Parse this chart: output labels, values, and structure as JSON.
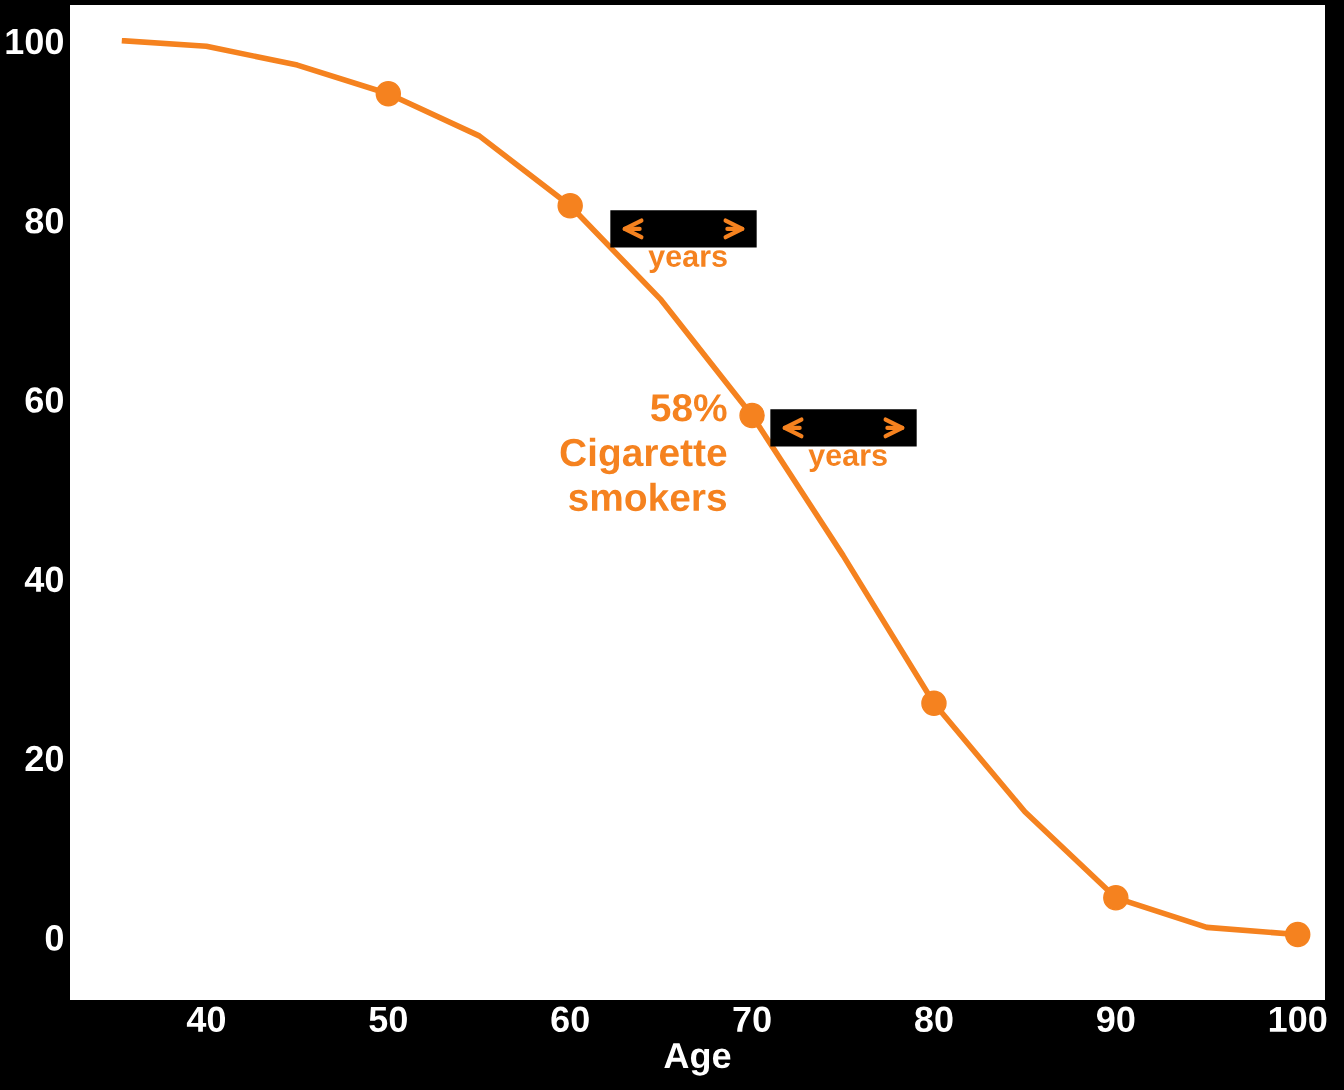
{
  "chart_data": {
    "type": "line",
    "xlabel": "Age",
    "series": [
      {
        "color": "#f5821f",
        "x": [
          35.5,
          40,
          45,
          50,
          55,
          60,
          65,
          70,
          75,
          80,
          85,
          90,
          95,
          100
        ],
        "values": [
          100,
          99.4,
          97.3,
          94.1,
          89.4,
          81.6,
          71.1,
          58.2,
          42.6,
          26.1,
          14,
          4.4,
          1.1,
          0.3
        ]
      },
      {
        "type": "scatter",
        "color": "#f5821f",
        "marker": "circle",
        "x": [
          50,
          60,
          70,
          80,
          90,
          100
        ],
        "values": [
          94.1,
          81.6,
          58.2,
          26.1,
          4.4,
          0.3
        ]
      }
    ],
    "xlim": [
      32.5,
      101.5
    ],
    "xticks": [
      40,
      50,
      60,
      70,
      80,
      90,
      100
    ],
    "ylim": [
      -7,
      104
    ],
    "yticks": [
      0,
      20,
      40,
      60,
      80,
      100
    ],
    "grid": false,
    "legend": false,
    "annotations": [
      "years",
      "years",
      "58%\nCigarette\nsmokers"
    ]
  }
}
